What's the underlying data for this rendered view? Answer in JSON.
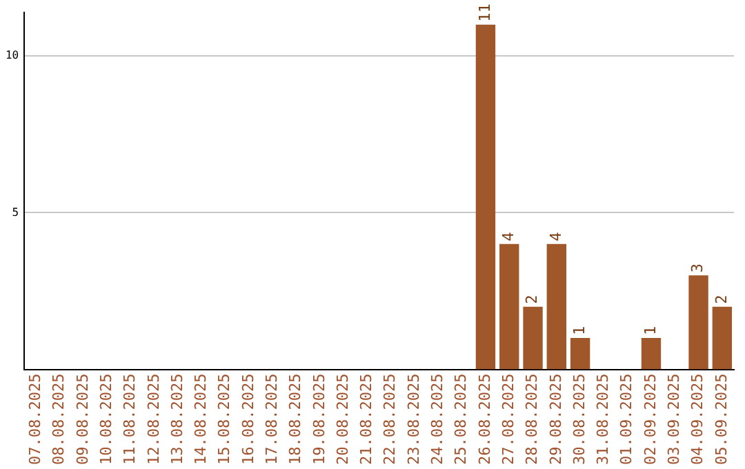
{
  "chart_data": {
    "type": "bar",
    "categories": [
      "07.08.2025",
      "08.08.2025",
      "09.08.2025",
      "10.08.2025",
      "11.08.2025",
      "12.08.2025",
      "13.08.2025",
      "14.08.2025",
      "15.08.2025",
      "16.08.2025",
      "17.08.2025",
      "18.08.2025",
      "19.08.2025",
      "20.08.2025",
      "21.08.2025",
      "22.08.2025",
      "23.08.2025",
      "24.08.2025",
      "25.08.2025",
      "26.08.2025",
      "27.08.2025",
      "28.08.2025",
      "29.08.2025",
      "30.08.2025",
      "31.08.2025",
      "01.09.2025",
      "02.09.2025",
      "03.09.2025",
      "04.09.2025",
      "05.09.2025"
    ],
    "values": [
      0,
      0,
      0,
      0,
      0,
      0,
      0,
      0,
      0,
      0,
      0,
      0,
      0,
      0,
      0,
      0,
      0,
      0,
      0,
      11,
      4,
      2,
      4,
      1,
      0,
      0,
      1,
      0,
      3,
      2
    ],
    "value_labels": [
      null,
      null,
      null,
      null,
      null,
      null,
      null,
      null,
      null,
      null,
      null,
      null,
      null,
      null,
      null,
      null,
      null,
      null,
      null,
      "11",
      "4",
      "2",
      "4",
      "1",
      null,
      null,
      "1",
      null,
      "3",
      "2"
    ],
    "color": "#a0582a",
    "ylim": [
      0,
      11.4
    ],
    "yticks": [
      5,
      10
    ],
    "grid": "y"
  }
}
